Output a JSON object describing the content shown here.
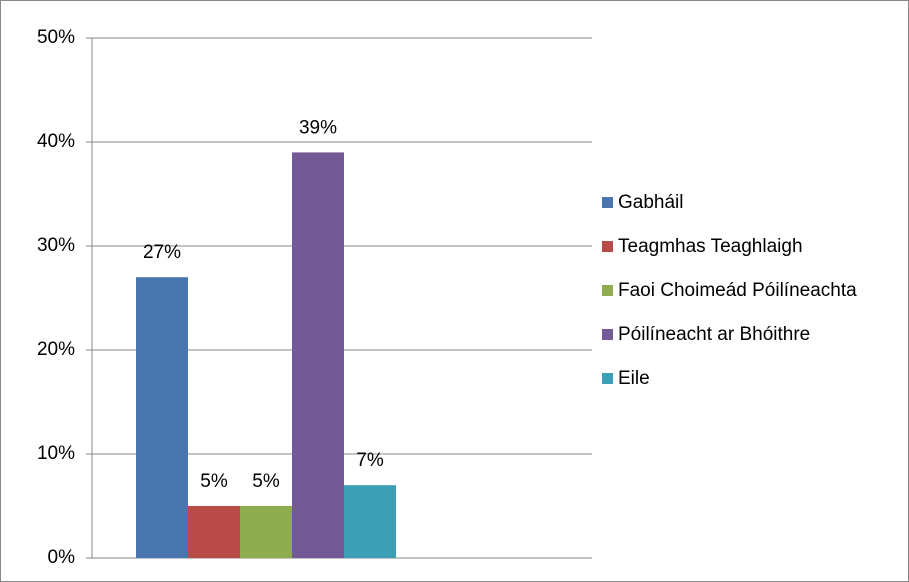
{
  "chart_data": {
    "type": "bar",
    "series": [
      {
        "name": "Gabháil",
        "color": "#4a76b0",
        "values": [
          27
        ],
        "value_labels": [
          "27%"
        ]
      },
      {
        "name": "Teagmhas Teaghlaigh",
        "color": "#b84a47",
        "values": [
          5
        ],
        "value_labels": [
          "5%"
        ]
      },
      {
        "name": "Faoi Choimeád Póilíneachta",
        "color": "#8fad4e",
        "values": [
          5
        ],
        "value_labels": [
          "5%"
        ]
      },
      {
        "name": "Póilíneacht ar Bhóithre",
        "color": "#735a96",
        "values": [
          39
        ],
        "value_labels": [
          "39%"
        ]
      },
      {
        "name": "Eile",
        "color": "#3d9fb6",
        "values": [
          7
        ],
        "value_labels": [
          "7%"
        ]
      }
    ],
    "ylim": [
      0,
      50
    ],
    "yticks": [
      {
        "value": 0,
        "label": "0%"
      },
      {
        "value": 10,
        "label": "10%"
      },
      {
        "value": 20,
        "label": "20%"
      },
      {
        "value": 30,
        "label": "30%"
      },
      {
        "value": 40,
        "label": "40%"
      },
      {
        "value": 50,
        "label": "50%"
      }
    ],
    "grid": true,
    "legend": "right"
  }
}
